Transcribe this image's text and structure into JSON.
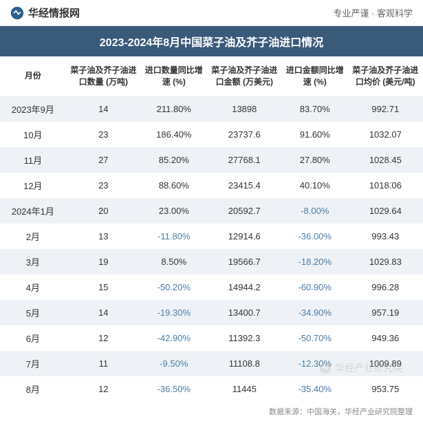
{
  "header": {
    "site_name": "华经情报网",
    "tagline": "专业严谨 · 客观科学"
  },
  "title": "2023-2024年8月中国菜子油及芥子油进口情况",
  "columns": [
    "月份",
    "菜子油及芥子油进口数量\n(万吨)",
    "进口数量同比增速\n(%)",
    "菜子油及芥子油进口金额\n(万美元)",
    "进口金额同比增速\n(%)",
    "菜子油及芥子油进口均价\n(美元/吨)"
  ],
  "rows": [
    {
      "month": "2023年9月",
      "qty": "14",
      "qty_growth": "211.80%",
      "qty_neg": false,
      "amount": "13898",
      "amount_growth": "83.70%",
      "amount_neg": false,
      "avg": "992.71"
    },
    {
      "month": "10月",
      "qty": "23",
      "qty_growth": "186.40%",
      "qty_neg": false,
      "amount": "23737.6",
      "amount_growth": "91.60%",
      "amount_neg": false,
      "avg": "1032.07"
    },
    {
      "month": "11月",
      "qty": "27",
      "qty_growth": "85.20%",
      "qty_neg": false,
      "amount": "27768.1",
      "amount_growth": "27.80%",
      "amount_neg": false,
      "avg": "1028.45"
    },
    {
      "month": "12月",
      "qty": "23",
      "qty_growth": "88.60%",
      "qty_neg": false,
      "amount": "23415.4",
      "amount_growth": "40.10%",
      "amount_neg": false,
      "avg": "1018.06"
    },
    {
      "month": "2024年1月",
      "qty": "20",
      "qty_growth": "23.00%",
      "qty_neg": false,
      "amount": "20592.7",
      "amount_growth": "-8.00%",
      "amount_neg": true,
      "avg": "1029.64"
    },
    {
      "month": "2月",
      "qty": "13",
      "qty_growth": "-11.80%",
      "qty_neg": true,
      "amount": "12914.6",
      "amount_growth": "-36.00%",
      "amount_neg": true,
      "avg": "993.43"
    },
    {
      "month": "3月",
      "qty": "19",
      "qty_growth": "8.50%",
      "qty_neg": false,
      "amount": "19566.7",
      "amount_growth": "-18.20%",
      "amount_neg": true,
      "avg": "1029.83"
    },
    {
      "month": "4月",
      "qty": "15",
      "qty_growth": "-50.20%",
      "qty_neg": true,
      "amount": "14944.2",
      "amount_growth": "-60.90%",
      "amount_neg": true,
      "avg": "996.28"
    },
    {
      "month": "5月",
      "qty": "14",
      "qty_growth": "-19.30%",
      "qty_neg": true,
      "amount": "13400.7",
      "amount_growth": "-34.90%",
      "amount_neg": true,
      "avg": "957.19"
    },
    {
      "month": "6月",
      "qty": "12",
      "qty_growth": "-42.90%",
      "qty_neg": true,
      "amount": "11392.3",
      "amount_growth": "-50.70%",
      "amount_neg": true,
      "avg": "949.36"
    },
    {
      "month": "7月",
      "qty": "11",
      "qty_growth": "-9.50%",
      "qty_neg": true,
      "amount": "11108.8",
      "amount_growth": "-12.30%",
      "amount_neg": true,
      "avg": "1009.89"
    },
    {
      "month": "8月",
      "qty": "12",
      "qty_growth": "-36.50%",
      "qty_neg": true,
      "amount": "11445",
      "amount_growth": "-35.40%",
      "amount_neg": true,
      "avg": "953.75"
    }
  ],
  "footer": "数据来源：中国海关，华经产业研究院整理",
  "watermark": "华经产业研究院",
  "colors": {
    "title_bg": "#3a5a7a",
    "title_text": "#ffffff",
    "row_odd_bg": "#eef2f6",
    "row_even_bg": "#ffffff",
    "negative_text": "#4a7ba8",
    "normal_text": "#333333"
  }
}
